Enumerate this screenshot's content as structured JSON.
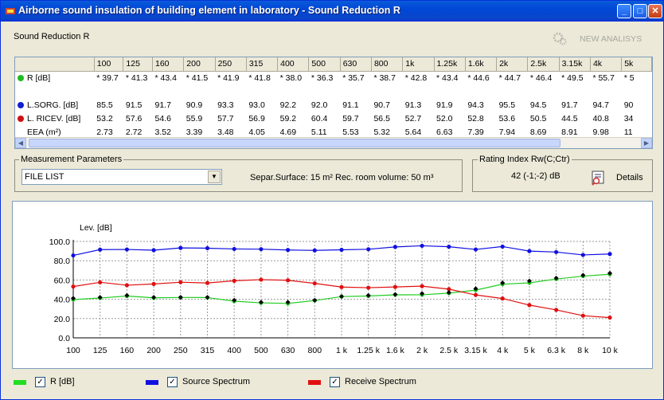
{
  "window": {
    "title": "Airborne sound insulation of building element in laboratory - Sound Reduction R",
    "minimize": "_",
    "maximize": "□",
    "close": "✕"
  },
  "section_title": "Sound Reduction R",
  "new_analysis": "NEW ANALISYS",
  "table": {
    "frequencies": [
      "100",
      "125",
      "160",
      "200",
      "250",
      "315",
      "400",
      "500",
      "630",
      "800",
      "1k",
      "1.25k",
      "1.6k",
      "2k",
      "2.5k",
      "3.15k",
      "4k",
      "5k"
    ],
    "rows": [
      {
        "label": "R [dB]",
        "dot_color": "#22bb22",
        "values": [
          "* 39.7",
          "* 41.3",
          "* 43.4",
          "* 41.5",
          "* 41.9",
          "* 41.8",
          "* 38.0",
          "* 36.3",
          "* 35.7",
          "* 38.7",
          "* 42.8",
          "* 43.4",
          "* 44.6",
          "* 44.7",
          "* 46.4",
          "* 49.5",
          "* 55.7",
          "* 5"
        ]
      },
      {
        "label": "",
        "dot_color": "",
        "values": [
          "",
          "",
          "",
          "",
          "",
          "",
          "",
          "",
          "",
          "",
          "",
          "",
          "",
          "",
          "",
          "",
          "",
          ""
        ]
      },
      {
        "label": "L.SORG. [dB]",
        "dot_color": "#1020d0",
        "values": [
          "85.5",
          "91.5",
          "91.7",
          "90.9",
          "93.3",
          "93.0",
          "92.2",
          "92.0",
          "91.1",
          "90.7",
          "91.3",
          "91.9",
          "94.3",
          "95.5",
          "94.5",
          "91.7",
          "94.7",
          "90"
        ]
      },
      {
        "label": "L. RICEV. [dB]",
        "dot_color": "#d01010",
        "values": [
          "53.2",
          "57.6",
          "54.6",
          "55.9",
          "57.7",
          "56.9",
          "59.2",
          "60.4",
          "59.7",
          "56.5",
          "52.7",
          "52.0",
          "52.8",
          "53.6",
          "50.5",
          "44.5",
          "40.8",
          "34"
        ]
      },
      {
        "label": "EEA (m²)",
        "dot_color": "",
        "values": [
          "2.73",
          "2.72",
          "3.52",
          "3.39",
          "3.48",
          "4.05",
          "4.69",
          "5.11",
          "5.53",
          "5.32",
          "5.64",
          "6.63",
          "7.39",
          "7.94",
          "8.69",
          "8.91",
          "9.98",
          "11"
        ]
      }
    ]
  },
  "measurement": {
    "group_label": "Measurement Parameters",
    "combo_value": "FILE LIST",
    "separ_text": "Separ.Surface: 15 m²  Rec. room volume:   50 m³"
  },
  "rating": {
    "group_label": "Rating Index  Rw(C;Ctr)",
    "value": "42 (-1;-2) dB",
    "details": "Details"
  },
  "legend": [
    {
      "label": "R [dB]",
      "color": "#22dd22"
    },
    {
      "label": "Source Spectrum",
      "color": "#1010e0"
    },
    {
      "label": "Receive Spectrum",
      "color": "#e01010"
    }
  ],
  "chart_data": {
    "type": "line",
    "ylabel": "Lev. [dB]",
    "ylim": [
      0,
      100
    ],
    "yticks": [
      "0.0",
      "20.0",
      "40.0",
      "60.0",
      "80.0",
      "100.0"
    ],
    "categories": [
      "100",
      "125",
      "160",
      "200",
      "250",
      "315",
      "400",
      "500",
      "630",
      "800",
      "1 k",
      "1.25 k",
      "1.6 k",
      "2 k",
      "2.5 k",
      "3.15 k",
      "4 k",
      "5 k",
      "6.3 k",
      "8 k",
      "10 k"
    ],
    "series": [
      {
        "name": "R [dB]",
        "color": "#22cc22",
        "values": [
          39.7,
          41.3,
          43.4,
          41.5,
          41.9,
          41.8,
          38.0,
          36.3,
          35.7,
          38.7,
          42.8,
          43.4,
          44.6,
          44.7,
          46.4,
          49.5,
          55.7,
          57,
          61,
          64,
          66
        ]
      },
      {
        "name": "Source Spectrum",
        "color": "#1010e0",
        "values": [
          85.5,
          91.5,
          91.7,
          90.9,
          93.3,
          93.0,
          92.2,
          92.0,
          91.1,
          90.7,
          91.3,
          91.9,
          94.3,
          95.5,
          94.5,
          91.7,
          94.7,
          90,
          89,
          86,
          87
        ]
      },
      {
        "name": "Receive Spectrum",
        "color": "#e01010",
        "values": [
          53.2,
          57.6,
          54.6,
          55.9,
          57.7,
          56.9,
          59.2,
          60.4,
          59.7,
          56.5,
          52.7,
          52.0,
          52.8,
          53.6,
          50.5,
          44.5,
          40.8,
          34,
          29,
          23,
          21
        ]
      }
    ],
    "markers": [
      41,
      42,
      44,
      42,
      42,
      42,
      39,
      37,
      37,
      39,
      43,
      44,
      45,
      46,
      47,
      51,
      57,
      59,
      62,
      65,
      67
    ],
    "grid": true
  }
}
